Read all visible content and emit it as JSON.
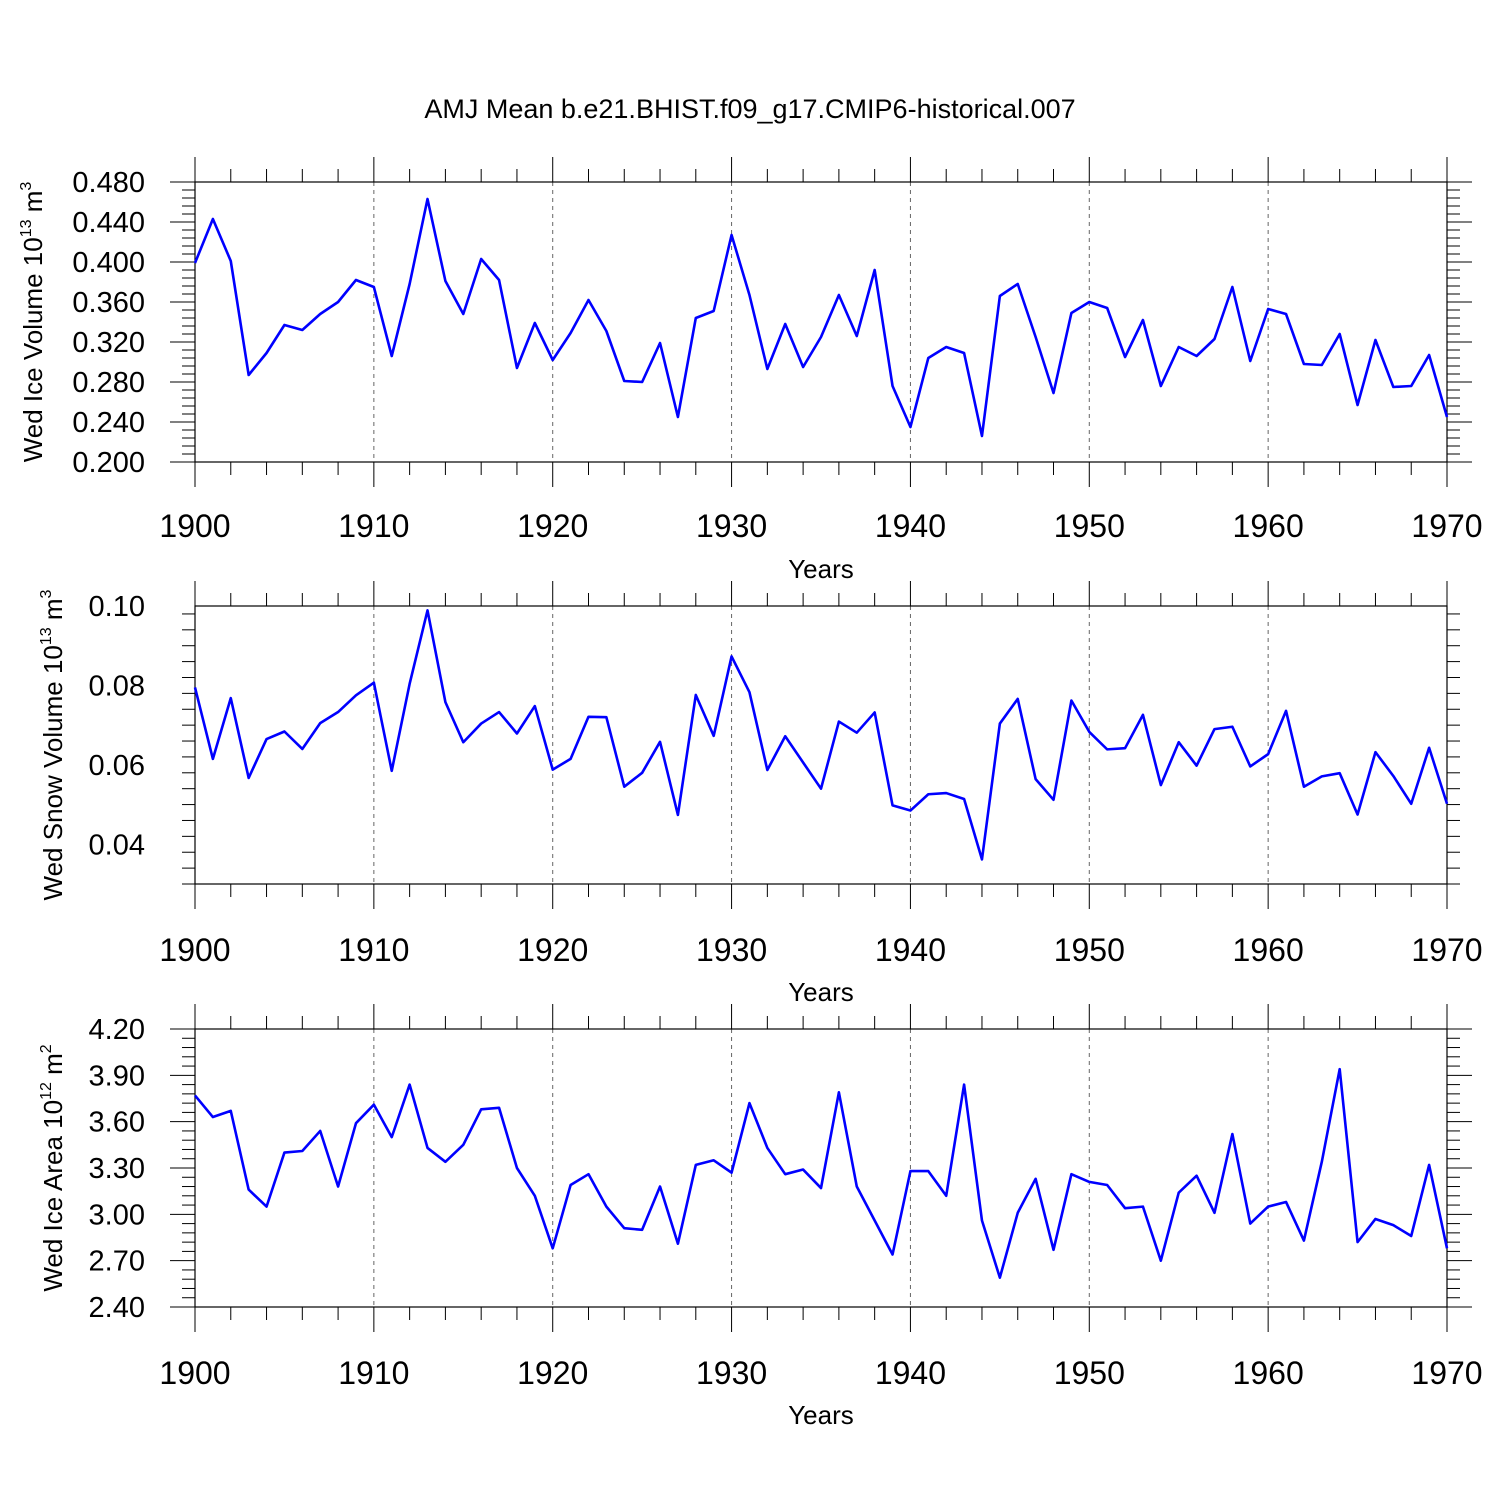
{
  "chart_data": {
    "title": "AMJ Mean b.e21.BHIST.f09_g17.CMIP6-historical.007",
    "type": "line",
    "line_color": "#0000ff",
    "xlim": [
      1900,
      1970
    ],
    "x_ticks": [
      "1900",
      "1910",
      "1920",
      "1930",
      "1940",
      "1950",
      "1960",
      "1970"
    ],
    "x_tick_values": [
      1900,
      1910,
      1920,
      1930,
      1940,
      1950,
      1960,
      1970
    ],
    "grid": "dashed vertical lines at decades",
    "panels": [
      {
        "ylabel": "Wed Ice Volume 10",
        "ylabel_exp": "13",
        "ylabel_unit": " m",
        "ylabel_unit_exp": "3",
        "xlabel": "Years",
        "ylim": [
          0.2,
          0.48
        ],
        "y_ticks": [
          "0.200",
          "0.240",
          "0.280",
          "0.320",
          "0.360",
          "0.400",
          "0.440",
          "0.480"
        ],
        "y_tick_values": [
          0.2,
          0.24,
          0.28,
          0.32,
          0.36,
          0.4,
          0.44,
          0.48
        ],
        "x_start": 1900,
        "values": [
          0.399,
          0.443,
          0.401,
          0.287,
          0.309,
          0.337,
          0.332,
          0.348,
          0.36,
          0.382,
          0.375,
          0.306,
          0.378,
          0.463,
          0.381,
          0.348,
          0.403,
          0.382,
          0.294,
          0.339,
          0.302,
          0.329,
          0.362,
          0.331,
          0.281,
          0.28,
          0.319,
          0.245,
          0.344,
          0.351,
          0.427,
          0.367,
          0.293,
          0.338,
          0.295,
          0.325,
          0.367,
          0.326,
          0.392,
          0.276,
          0.235,
          0.304,
          0.315,
          0.309,
          0.226,
          0.366,
          0.378,
          0.325,
          0.269,
          0.349,
          0.36,
          0.354,
          0.305,
          0.342,
          0.276,
          0.315,
          0.306,
          0.323,
          0.375,
          0.301,
          0.353,
          0.348,
          0.298,
          0.297,
          0.328,
          0.257,
          0.322,
          0.275,
          0.276,
          0.307,
          0.245
        ]
      },
      {
        "ylabel": "Wed Snow Volume 10",
        "ylabel_exp": "13",
        "ylabel_unit": " m",
        "ylabel_unit_exp": "3",
        "xlabel": "Years",
        "ylim": [
          0.03,
          0.1
        ],
        "y_ticks": [
          "0.04",
          "0.06",
          "0.08",
          "0.10"
        ],
        "y_tick_values": [
          0.04,
          0.06,
          0.08,
          0.1
        ],
        "x_start": 1900,
        "values": [
          0.0795,
          0.0615,
          0.0768,
          0.0567,
          0.0665,
          0.0684,
          0.064,
          0.0705,
          0.0733,
          0.0775,
          0.0807,
          0.0585,
          0.0804,
          0.0989,
          0.0758,
          0.0657,
          0.0704,
          0.0733,
          0.0679,
          0.0748,
          0.0588,
          0.0615,
          0.0721,
          0.072,
          0.0545,
          0.058,
          0.0658,
          0.0474,
          0.0776,
          0.0673,
          0.0873,
          0.0783,
          0.0587,
          0.0672,
          0.0606,
          0.054,
          0.0709,
          0.0681,
          0.0732,
          0.0498,
          0.0485,
          0.0526,
          0.0529,
          0.0514,
          0.0362,
          0.0704,
          0.0766,
          0.0564,
          0.0512,
          0.0762,
          0.0683,
          0.0639,
          0.0642,
          0.0726,
          0.0549,
          0.0657,
          0.0598,
          0.069,
          0.0696,
          0.0596,
          0.0627,
          0.0736,
          0.0545,
          0.0571,
          0.0579,
          0.0475,
          0.0632,
          0.0572,
          0.0502,
          0.0643,
          0.0502
        ]
      },
      {
        "ylabel": "Wed Ice Area 10",
        "ylabel_exp": "12",
        "ylabel_unit": " m",
        "ylabel_unit_exp": "2",
        "xlabel": "Years",
        "ylim": [
          2.4,
          4.2
        ],
        "y_ticks": [
          "2.40",
          "2.70",
          "3.00",
          "3.30",
          "3.60",
          "3.90",
          "4.20"
        ],
        "y_tick_values": [
          2.4,
          2.7,
          3.0,
          3.3,
          3.6,
          3.9,
          4.2
        ],
        "x_start": 1900,
        "values": [
          3.77,
          3.63,
          3.67,
          3.16,
          3.05,
          3.4,
          3.41,
          3.54,
          3.18,
          3.59,
          3.71,
          3.5,
          3.84,
          3.43,
          3.34,
          3.45,
          3.68,
          3.69,
          3.3,
          3.12,
          2.78,
          3.19,
          3.26,
          3.05,
          2.91,
          2.9,
          3.18,
          2.81,
          3.32,
          3.35,
          3.27,
          3.72,
          3.43,
          3.26,
          3.29,
          3.17,
          3.79,
          3.18,
          2.96,
          2.74,
          3.28,
          3.28,
          3.12,
          3.84,
          2.96,
          2.59,
          3.01,
          3.23,
          2.77,
          3.26,
          3.21,
          3.19,
          3.04,
          3.05,
          2.7,
          3.14,
          3.25,
          3.01,
          3.52,
          2.94,
          3.05,
          3.08,
          2.83,
          3.34,
          3.94,
          2.82,
          2.97,
          2.93,
          2.86,
          3.32,
          2.78
        ]
      }
    ]
  }
}
